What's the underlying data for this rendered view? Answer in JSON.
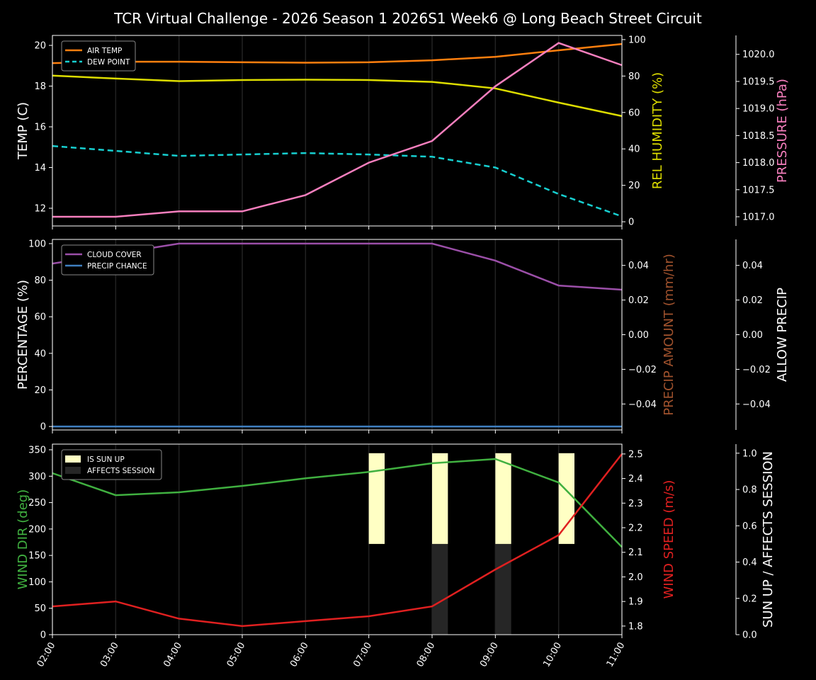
{
  "chart_data": [
    {
      "type": "line",
      "title": "TCR Virtual Challenge - 2026 Season 1 2026S1 Week6 @ Long Beach Street Circuit",
      "x": [
        "02:00",
        "03:00",
        "04:00",
        "05:00",
        "06:00",
        "07:00",
        "08:00",
        "09:00",
        "10:00",
        "11:00"
      ],
      "axes": [
        {
          "id": "temp",
          "side": "left",
          "label": "TEMP (C)",
          "color": "#ffffff",
          "lim": [
            11.13,
            20.49
          ],
          "ticks": [
            12,
            14,
            16,
            18,
            20
          ],
          "tick_labels": [
            "12",
            "14",
            "16",
            "18",
            "20"
          ]
        },
        {
          "id": "hum",
          "side": "right",
          "label": "REL HUMIDITY (%)",
          "color": "#dddd00",
          "lim": [
            -2.3,
            102.3
          ],
          "ticks": [
            0,
            20,
            40,
            60,
            80,
            100
          ],
          "tick_labels": [
            "0",
            "20",
            "40",
            "60",
            "80",
            "100"
          ]
        },
        {
          "id": "pres",
          "side": "right2",
          "label": "PRESSURE (hPa)",
          "color": "#f77fbe",
          "lim": [
            1016.83,
            1020.35
          ],
          "ticks": [
            1017.0,
            1017.5,
            1018.0,
            1018.5,
            1019.0,
            1019.5,
            1020.0
          ],
          "tick_labels": [
            "1017.0",
            "1017.5",
            "1018.0",
            "1018.5",
            "1019.0",
            "1019.5",
            "1020.0"
          ]
        }
      ],
      "series": [
        {
          "name": "AIR TEMP",
          "axis": "temp",
          "color": "#ff7f0e",
          "dash": false,
          "legend": true,
          "values": [
            19.13,
            19.2,
            19.2,
            19.17,
            19.15,
            19.17,
            19.27,
            19.44,
            19.76,
            20.07
          ]
        },
        {
          "name": "DEW POINT",
          "axis": "temp",
          "color": "#17cfd0",
          "dash": true,
          "legend": true,
          "values": [
            15.06,
            14.82,
            14.57,
            14.64,
            14.71,
            14.64,
            14.53,
            14.0,
            12.7,
            11.6
          ]
        },
        {
          "axis": "hum",
          "color": "#dddd00",
          "dash": false,
          "legend": false,
          "values": [
            80.2,
            78.6,
            77.2,
            77.8,
            78.0,
            77.8,
            76.8,
            73.2,
            65.4,
            58.0
          ]
        },
        {
          "axis": "pres",
          "color": "#f77fbe",
          "dash": false,
          "legend": false,
          "values": [
            1017.0,
            1017.0,
            1017.1,
            1017.1,
            1017.4,
            1018.0,
            1018.4,
            1019.41,
            1020.21,
            1019.8
          ]
        }
      ],
      "grid": "vertical",
      "legend": "top-left"
    },
    {
      "type": "line",
      "x": [
        "02:00",
        "03:00",
        "04:00",
        "05:00",
        "06:00",
        "07:00",
        "08:00",
        "09:00",
        "10:00",
        "11:00"
      ],
      "axes": [
        {
          "id": "pct",
          "side": "left",
          "label": "PERCENTAGE (%)",
          "color": "#ffffff",
          "lim": [
            -1.9,
            102.3
          ],
          "ticks": [
            0,
            20,
            40,
            60,
            80,
            100
          ],
          "tick_labels": [
            "0",
            "20",
            "40",
            "60",
            "80",
            "100"
          ]
        },
        {
          "id": "amt",
          "side": "right",
          "label": "PRECIP AMOUNT (mm/hr)",
          "color": "#a0522d",
          "lim": [
            -0.055,
            0.055
          ],
          "ticks": [
            -0.04,
            -0.02,
            0,
            0.02,
            0.04
          ],
          "tick_labels": [
            "−0.04",
            "−0.02",
            "0.00",
            "0.02",
            "0.04"
          ]
        },
        {
          "id": "allow",
          "side": "right2",
          "label": "ALLOW PRECIP",
          "color": "#ffffff",
          "lim": [
            -0.055,
            0.055
          ],
          "ticks": [
            -0.04,
            -0.02,
            0,
            0.02,
            0.04
          ],
          "tick_labels": [
            "−0.04",
            "−0.02",
            "0.00",
            "0.02",
            "0.04"
          ]
        }
      ],
      "series": [
        {
          "name": "CLOUD COVER",
          "axis": "pct",
          "color": "#9b4fa8",
          "dash": false,
          "legend": true,
          "values": [
            89.1,
            94.5,
            100,
            100,
            100,
            100,
            100,
            90.7,
            77.1,
            74.8
          ]
        },
        {
          "name": "PRECIP CHANCE",
          "axis": "pct",
          "color": "#3f7fc0",
          "dash": false,
          "legend": true,
          "values": [
            0,
            0,
            0,
            0,
            0,
            0,
            0,
            0,
            0,
            0
          ]
        }
      ],
      "grid": "vertical",
      "legend": "top-left"
    },
    {
      "type": "line",
      "x": [
        "02:00",
        "03:00",
        "04:00",
        "05:00",
        "06:00",
        "07:00",
        "08:00",
        "09:00",
        "10:00",
        "11:00"
      ],
      "xlabel_rotation": 60,
      "axes": [
        {
          "id": "dir",
          "side": "left",
          "label": "WIND DIR (deg)",
          "color": "#40b040",
          "lim": [
            0,
            360.7
          ],
          "ticks": [
            0,
            50,
            100,
            150,
            200,
            250,
            300,
            350
          ],
          "tick_labels": [
            "0",
            "50",
            "100",
            "150",
            "200",
            "250",
            "300",
            "350"
          ]
        },
        {
          "id": "spd",
          "side": "right",
          "label": "WIND SPEED (m/s)",
          "color": "#e02020",
          "lim": [
            1.765,
            2.54
          ],
          "ticks": [
            1.8,
            1.9,
            2.0,
            2.1,
            2.2,
            2.3,
            2.4,
            2.5
          ],
          "tick_labels": [
            "1.8",
            "1.9",
            "2.0",
            "2.1",
            "2.2",
            "2.3",
            "2.4",
            "2.5"
          ]
        },
        {
          "id": "sun",
          "side": "right2",
          "label": "SUN UP / AFFECTS SESSION",
          "color": "#ffffff",
          "lim": [
            0,
            1.05
          ],
          "ticks": [
            0,
            0.2,
            0.4,
            0.6,
            0.8,
            1.0
          ],
          "tick_labels": [
            "0.0",
            "0.2",
            "0.4",
            "0.6",
            "0.8",
            "1.0"
          ]
        }
      ],
      "bars": [
        {
          "name": "IS SUN UP",
          "color": "#ffffc4",
          "values": [
            0,
            0,
            0,
            0,
            0,
            1,
            1,
            1,
            1,
            0
          ]
        },
        {
          "name": "AFFECTS SESSION",
          "color": "#262626",
          "values": [
            0,
            0,
            0,
            0,
            0,
            0,
            1,
            1,
            0,
            0
          ]
        }
      ],
      "series": [
        {
          "axis": "dir",
          "color": "#40b040",
          "dash": false,
          "legend": false,
          "values": [
            305.7,
            264,
            269.5,
            281.6,
            296,
            308,
            324.5,
            332.6,
            288,
            166
          ]
        },
        {
          "axis": "spd",
          "color": "#e02020",
          "dash": false,
          "legend": false,
          "values": [
            1.88,
            1.9,
            1.83,
            1.8,
            1.82,
            1.84,
            1.88,
            2.03,
            2.17,
            2.5
          ]
        }
      ],
      "grid": "vertical",
      "legend": "top-left"
    }
  ]
}
